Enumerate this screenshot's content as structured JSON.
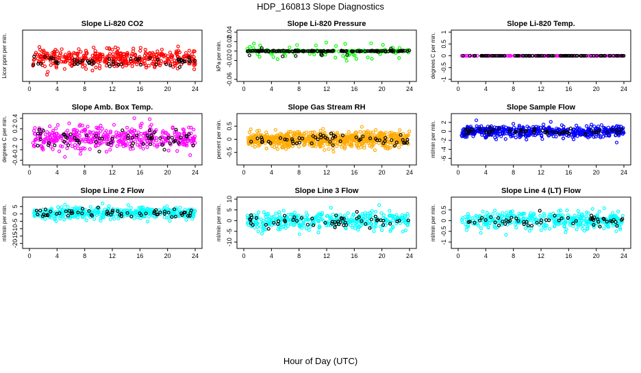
{
  "figure": {
    "title": "HDP_160813  Slope Diagnostics",
    "xlabel": "Hour of Day (UTC)"
  },
  "chart_data": [
    {
      "type": "scatter",
      "title": "Slope Li-820 CO2",
      "xlabel": "",
      "ylabel": "Licor ppm per min.",
      "xlim": [
        0,
        24
      ],
      "ylim": [
        -6,
        10
      ],
      "xticks": [
        0,
        4,
        8,
        12,
        16,
        20,
        24
      ],
      "yticks": [],
      "color": "#ff0000",
      "seed": 11,
      "series": [
        {
          "n": 420,
          "color": "#ff0000",
          "mean": 1,
          "spread": 2.2
        },
        {
          "n": 55,
          "color": "#000000",
          "mean": 0,
          "spread": 1
        }
      ]
    },
    {
      "type": "scatter",
      "title": "Slope Li-820 Pressure",
      "xlabel": "",
      "ylabel": "kPa per min.",
      "xlim": [
        0,
        24
      ],
      "ylim": [
        -0.06,
        0.04
      ],
      "xticks": [
        0,
        4,
        8,
        12,
        16,
        20,
        24
      ],
      "yticks": [
        -0.06,
        -0.02,
        0.0,
        0.02,
        0.04
      ],
      "color": "#00ff00",
      "seed": 23,
      "series": [
        {
          "n": 60,
          "color": "#00ff00",
          "mean": 0,
          "spread": 0.014
        },
        {
          "n": 160,
          "color": "#00ff00",
          "mean": 0,
          "spread": 0.001
        },
        {
          "n": 150,
          "color": "#000000",
          "mean": 0,
          "spread": 0.0008
        },
        {
          "n": 12,
          "color": "#000000",
          "mean": -0.005,
          "spread": 0.01
        }
      ]
    },
    {
      "type": "scatter",
      "title": "Slope Li-820 Temp.",
      "xlabel": "",
      "ylabel": "degrees C per min.",
      "xlim": [
        0,
        24
      ],
      "ylim": [
        -1.0,
        1.0
      ],
      "xticks": [
        0,
        4,
        8,
        12,
        16,
        20,
        24
      ],
      "yticks": [
        -1.0,
        -0.5,
        0.0,
        0.5,
        1.0
      ],
      "color": "#ff00ff",
      "seed": 37,
      "series": [
        {
          "n": 120,
          "color": "#ff00ff",
          "mean": 0,
          "spread": 0
        },
        {
          "n": 90,
          "color": "#000000",
          "mean": 0,
          "spread": 0
        }
      ]
    },
    {
      "type": "scatter",
      "title": "Slope Amb. Box Temp.",
      "xlabel": "",
      "ylabel": "degrees C per min.",
      "xlim": [
        0,
        24
      ],
      "ylim": [
        -0.45,
        0.45
      ],
      "xticks": [
        0,
        4,
        8,
        12,
        16,
        20,
        24
      ],
      "yticks": [
        -0.4,
        -0.2,
        0.0,
        0.2,
        0.4
      ],
      "color": "#ff00ff",
      "seed": 41,
      "series": [
        {
          "n": 420,
          "color": "#ff00ff",
          "mean": 0.02,
          "spread": 0.15
        },
        {
          "n": 60,
          "color": "#000000",
          "mean": 0,
          "spread": 0.12
        }
      ]
    },
    {
      "type": "scatter",
      "title": "Slope Gas Stream RH",
      "xlabel": "",
      "ylabel": "percent per min.",
      "xlim": [
        0,
        24
      ],
      "ylim": [
        -0.9,
        0.9
      ],
      "xticks": [
        0,
        4,
        8,
        12,
        16,
        20,
        24
      ],
      "yticks": [
        -0.5,
        0.0,
        0.5
      ],
      "color": "#ffaa00",
      "seed": 53,
      "series": [
        {
          "n": 650,
          "color": "#ffaa00",
          "mean": 0,
          "spread": 0.22
        },
        {
          "n": 55,
          "color": "#000000",
          "mean": 0,
          "spread": 0.18
        }
      ]
    },
    {
      "type": "scatter",
      "title": "Slope Sample Flow",
      "xlabel": "",
      "ylabel": "ml/min per min.",
      "xlim": [
        0,
        24
      ],
      "ylim": [
        -7,
        3.5
      ],
      "xticks": [
        0,
        4,
        8,
        12,
        16,
        20,
        24
      ],
      "yticks": [
        -6,
        -4,
        -2,
        0,
        2
      ],
      "color": "#0000ff",
      "seed": 67,
      "series": [
        {
          "n": 520,
          "color": "#0000ff",
          "mean": 0,
          "spread": 0.9
        },
        {
          "n": 60,
          "color": "#000000",
          "mean": 0,
          "spread": 0.5
        }
      ]
    },
    {
      "type": "scatter",
      "title": "Slope Line 2 Flow",
      "xlabel": "",
      "ylabel": "ml/min per min.",
      "xlim": [
        0,
        24
      ],
      "ylim": [
        -22,
        10
      ],
      "xticks": [
        0,
        4,
        8,
        12,
        16,
        20,
        24
      ],
      "yticks": [
        -20,
        -15,
        -10,
        -5,
        0,
        5
      ],
      "color": "#00ffff",
      "seed": 71,
      "series": [
        {
          "n": 380,
          "color": "#00ffff",
          "mean": 0.5,
          "spread": 2.8
        },
        {
          "n": 60,
          "color": "#000000",
          "mean": 0.5,
          "spread": 2
        }
      ]
    },
    {
      "type": "scatter",
      "title": "Slope Line 3 Flow",
      "xlabel": "",
      "ylabel": "ml/min per min.",
      "xlim": [
        0,
        24
      ],
      "ylim": [
        -12,
        10
      ],
      "xticks": [
        0,
        4,
        8,
        12,
        16,
        20,
        24
      ],
      "yticks": [
        -10,
        -5,
        0,
        5,
        10
      ],
      "color": "#00ffff",
      "seed": 83,
      "series": [
        {
          "n": 380,
          "color": "#00ffff",
          "mean": 0,
          "spread": 3
        },
        {
          "n": 55,
          "color": "#000000",
          "mean": 0,
          "spread": 2.2
        }
      ]
    },
    {
      "type": "scatter",
      "title": "Slope Line 4 (LT) Flow",
      "xlabel": "",
      "ylabel": "ml/min per min.",
      "xlim": [
        0,
        24
      ],
      "ylim": [
        -1.2,
        1.0
      ],
      "xticks": [
        0,
        4,
        8,
        12,
        16,
        20,
        24
      ],
      "yticks": [
        -1.0,
        -0.5,
        0.0,
        0.5
      ],
      "color": "#00ffff",
      "seed": 97,
      "series": [
        {
          "n": 380,
          "color": "#00ffff",
          "mean": 0,
          "spread": 0.28
        },
        {
          "n": 55,
          "color": "#000000",
          "mean": 0,
          "spread": 0.2
        }
      ]
    }
  ]
}
